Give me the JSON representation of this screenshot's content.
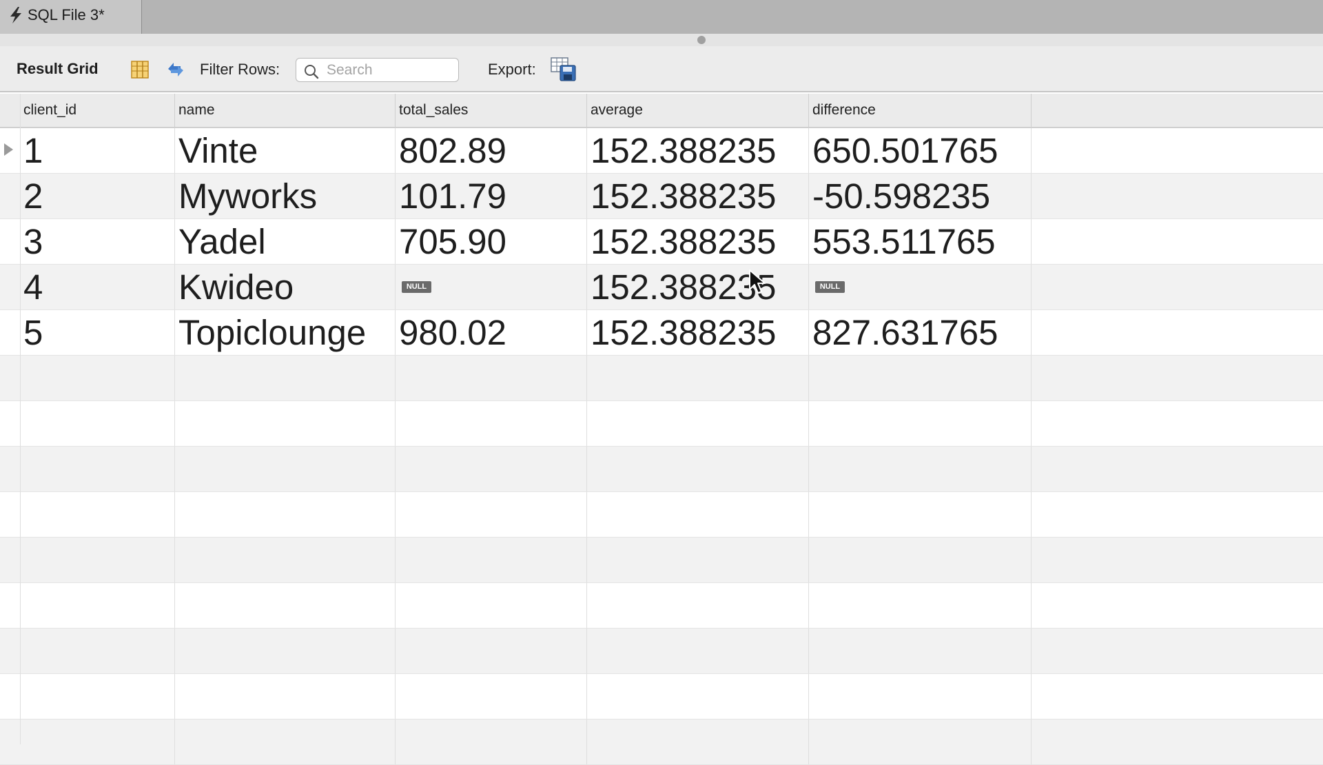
{
  "tab": {
    "label": "SQL File 3*",
    "icon": "lightning-bolt-icon"
  },
  "toolbar": {
    "title": "Result Grid",
    "grid_icon": "column-grid-icon",
    "refresh_icon": "refresh-icon",
    "filter_label": "Filter Rows:",
    "search_placeholder": "Search",
    "search_value": "",
    "export_label": "Export:",
    "export_icon": "export-save-icon"
  },
  "grid": {
    "columns": [
      "client_id",
      "name",
      "total_sales",
      "average",
      "difference"
    ],
    "null_label": "NULL",
    "rows": [
      {
        "client_id": "1",
        "name": "Vinte",
        "total_sales": "802.89",
        "average": "152.388235",
        "difference": "650.501765"
      },
      {
        "client_id": "2",
        "name": "Myworks",
        "total_sales": "101.79",
        "average": "152.388235",
        "difference": "-50.598235"
      },
      {
        "client_id": "3",
        "name": "Yadel",
        "total_sales": "705.90",
        "average": "152.388235",
        "difference": "553.511765"
      },
      {
        "client_id": "4",
        "name": "Kwideo",
        "total_sales": null,
        "average": "152.388235",
        "difference": null
      },
      {
        "client_id": "5",
        "name": "Topiclounge",
        "total_sales": "980.02",
        "average": "152.388235",
        "difference": "827.631765"
      }
    ],
    "selected_row": 0,
    "empty_rows": 9
  },
  "colors": {
    "null_badge": "#6a6a6a",
    "grid_icon_fill": "#f3c24b",
    "refresh_icon": "#3d78c9"
  }
}
